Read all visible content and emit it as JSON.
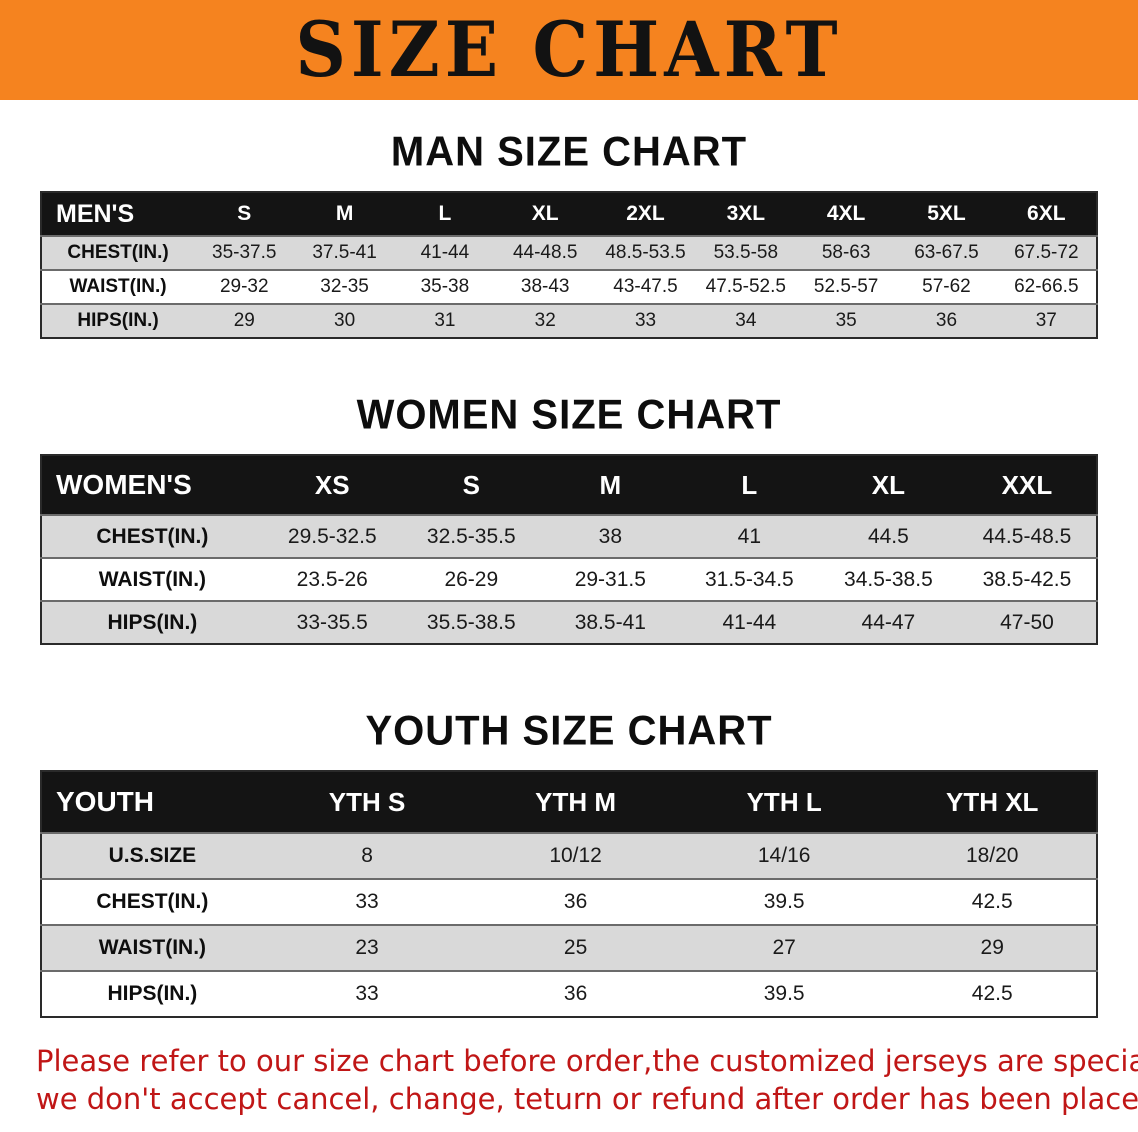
{
  "banner": {
    "title": "SIZE CHART"
  },
  "colors": {
    "banner_orange": "#f5831f",
    "table_header_black": "#141414",
    "row_stripe_gray": "#d9d9d9",
    "notice_red": "#c01616"
  },
  "sections": [
    {
      "id": "men",
      "title": "MAN SIZE CHART",
      "table": {
        "header": [
          "MEN'S",
          "S",
          "M",
          "L",
          "XL",
          "2XL",
          "3XL",
          "4XL",
          "5XL",
          "6XL"
        ],
        "rows": [
          [
            "CHEST(IN.)",
            "35-37.5",
            "37.5-41",
            "41-44",
            "44-48.5",
            "48.5-53.5",
            "53.5-58",
            "58-63",
            "63-67.5",
            "67.5-72"
          ],
          [
            "WAIST(IN.)",
            "29-32",
            "32-35",
            "35-38",
            "38-43",
            "43-47.5",
            "47.5-52.5",
            "52.5-57",
            "57-62",
            "62-66.5"
          ],
          [
            "HIPS(IN.)",
            "29",
            "30",
            "31",
            "32",
            "33",
            "34",
            "35",
            "36",
            "37"
          ]
        ]
      }
    },
    {
      "id": "women",
      "title": "WOMEN SIZE CHART",
      "table": {
        "header": [
          "WOMEN'S",
          "XS",
          "S",
          "M",
          "L",
          "XL",
          "XXL"
        ],
        "rows": [
          [
            "CHEST(IN.)",
            "29.5-32.5",
            "32.5-35.5",
            "38",
            "41",
            "44.5",
            "44.5-48.5"
          ],
          [
            "WAIST(IN.)",
            "23.5-26",
            "26-29",
            "29-31.5",
            "31.5-34.5",
            "34.5-38.5",
            "38.5-42.5"
          ],
          [
            "HIPS(IN.)",
            "33-35.5",
            "35.5-38.5",
            "38.5-41",
            "41-44",
            "44-47",
            "47-50"
          ]
        ]
      }
    },
    {
      "id": "youth",
      "title": "YOUTH SIZE CHART",
      "table": {
        "header": [
          "YOUTH",
          "YTH S",
          "YTH M",
          "YTH L",
          "YTH XL"
        ],
        "rows": [
          [
            "U.S.SIZE",
            "8",
            "10/12",
            "14/16",
            "18/20"
          ],
          [
            "CHEST(IN.)",
            "33",
            "36",
            "39.5",
            "42.5"
          ],
          [
            "WAIST(IN.)",
            "23",
            "25",
            "27",
            "29"
          ],
          [
            "HIPS(IN.)",
            "33",
            "36",
            "39.5",
            "42.5"
          ]
        ]
      }
    }
  ],
  "footer": {
    "lines": [
      "Please refer to our size chart before order,the customized jerseys are special products,",
      "we don't accept cancel, change, teturn or refund after order has been placed!"
    ]
  }
}
